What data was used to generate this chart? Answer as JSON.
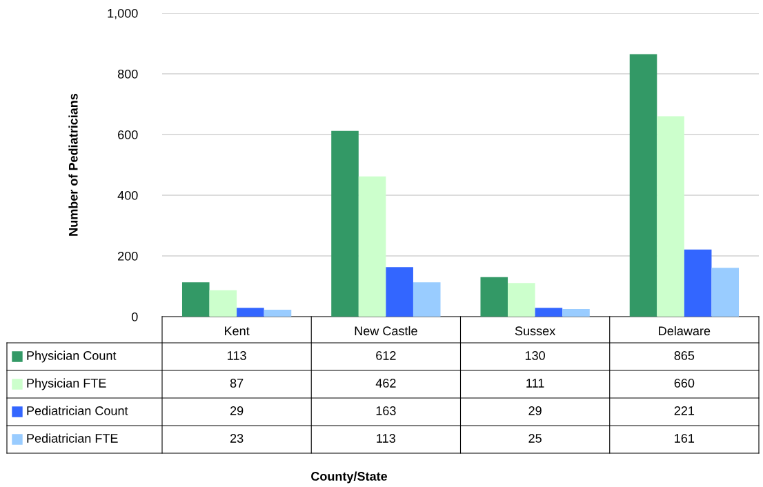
{
  "chart_data": {
    "type": "bar",
    "ylabel": "Number of Pediatricians",
    "annotations": [
      "County/State"
    ],
    "categories": [
      "Kent",
      "New Castle",
      "Sussex",
      "Delaware"
    ],
    "series": [
      {
        "name": "Physician Count",
        "color": "#339966",
        "values": [
          113,
          612,
          130,
          865
        ]
      },
      {
        "name": "Physician FTE",
        "color": "#ccffcc",
        "values": [
          87,
          462,
          111,
          660
        ]
      },
      {
        "name": "Pediatrician Count",
        "color": "#3366ff",
        "values": [
          29,
          163,
          29,
          221
        ]
      },
      {
        "name": "Pediatrician FTE",
        "color": "#99ccff",
        "values": [
          23,
          113,
          25,
          161
        ]
      }
    ],
    "ylim": [
      0,
      1000
    ],
    "yticks": [
      0,
      200,
      400,
      600,
      800,
      {
        "value": 1000,
        "label": "1,000"
      }
    ],
    "grid": "y",
    "legend": "bottom",
    "data_labels": true
  }
}
